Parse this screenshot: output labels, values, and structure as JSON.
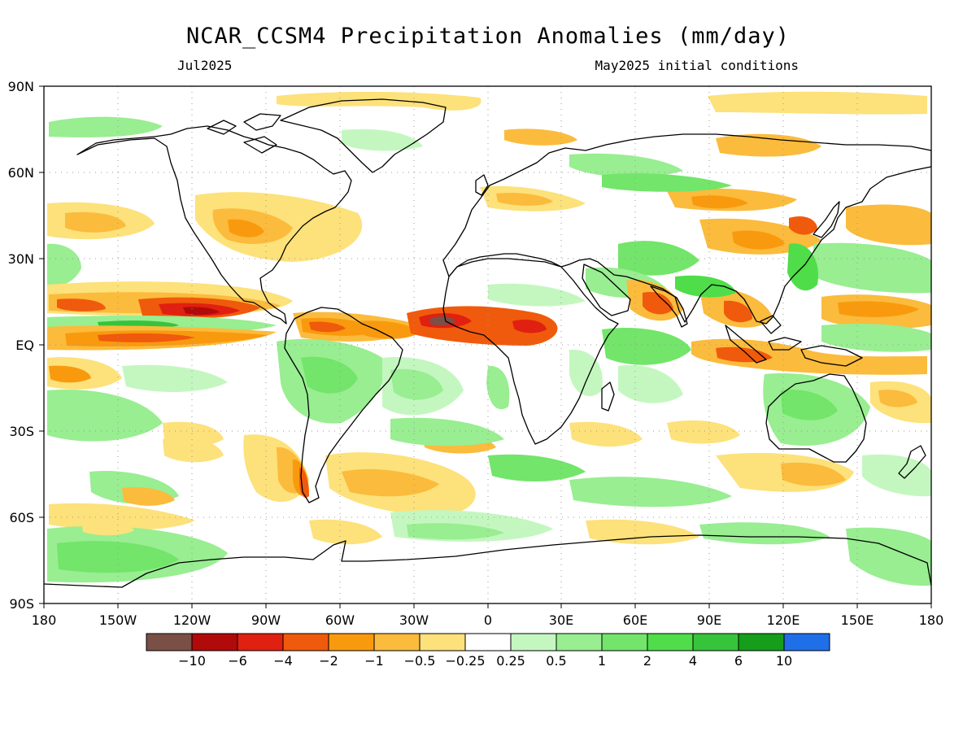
{
  "title": "NCAR_CCSM4 Precipitation Anomalies (mm/day)",
  "valid_month": "Jul2025",
  "initial_conditions": "May2025 initial conditions",
  "lat_labels": [
    "90N",
    "60N",
    "30N",
    "EQ",
    "30S",
    "60S",
    "90S"
  ],
  "lon_labels": [
    "180",
    "150W",
    "120W",
    "90W",
    "60W",
    "30W",
    "0",
    "30E",
    "60E",
    "90E",
    "120E",
    "150E",
    "180"
  ],
  "colorbar": {
    "labels": [
      "-10",
      "-6",
      "-4",
      "-2",
      "-1",
      "-0.5",
      "-0.25",
      "0.25",
      "0.5",
      "1",
      "2",
      "4",
      "6",
      "10"
    ],
    "colors": [
      "#7a4f46",
      "#b10a0a",
      "#e02010",
      "#f05a0c",
      "#f99a0e",
      "#fbbb3c",
      "#fde17a",
      "#ffffff",
      "#c4f7c0",
      "#98ee91",
      "#72e56a",
      "#4fdd4a",
      "#36c43a",
      "#169e1a",
      "#1f6fe8"
    ]
  },
  "colors": {
    "background": "#ffffff",
    "frame": "#000000",
    "coastline": "#000000",
    "grid": "#999999"
  },
  "chart_data": {
    "type": "heatmap",
    "variable": "Precipitation Anomalies",
    "units": "mm/day",
    "model": "NCAR_CCSM4",
    "valid": "Jul2025",
    "initialized": "May2025",
    "lon_range": [
      -180,
      180
    ],
    "lat_range": [
      -90,
      90
    ],
    "levels": [
      -10,
      -6,
      -4,
      -2,
      -1,
      -0.5,
      -0.25,
      0.25,
      0.5,
      1,
      2,
      4,
      6,
      10
    ]
  }
}
